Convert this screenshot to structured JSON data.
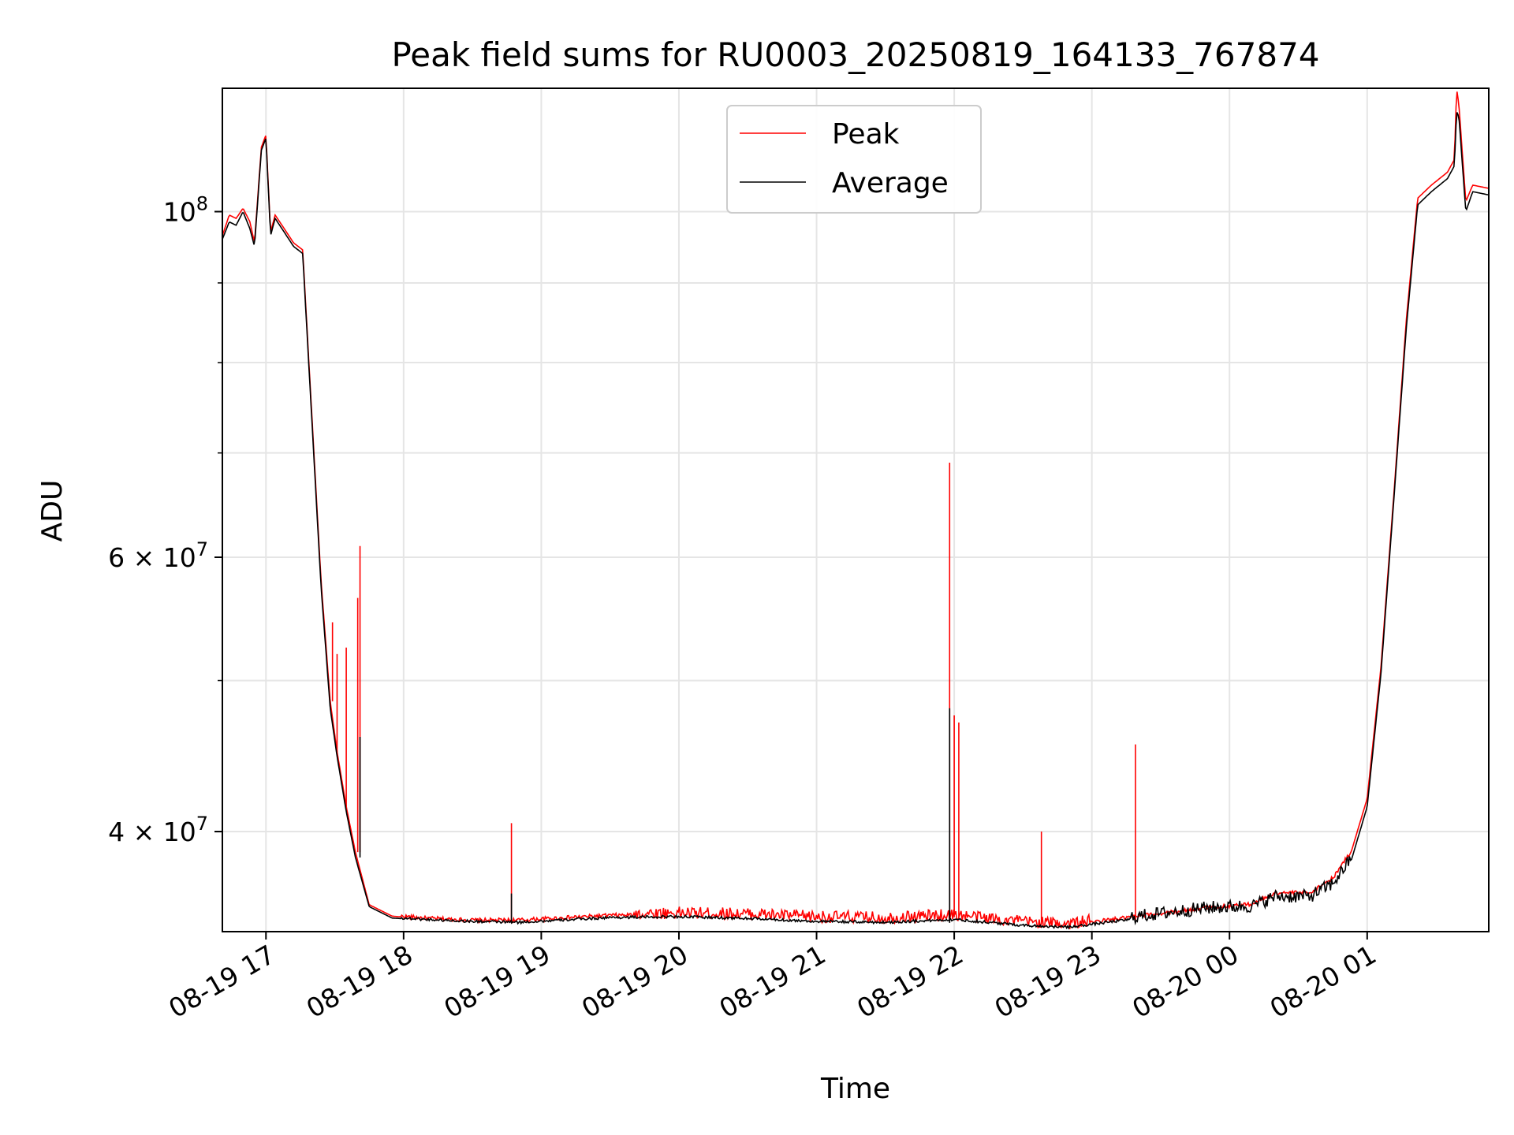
{
  "chart_data": {
    "type": "line",
    "title": "Peak field sums for RU0003_20250819_164133_767874",
    "xlabel": "Time",
    "ylabel": "ADU",
    "x_axis_type": "datetime",
    "y_scale": "log",
    "xlim": [
      "2025-08-19 16:41",
      "2025-08-20 01:53"
    ],
    "ylim": [
      34500000.0,
      120000000.0
    ],
    "grid": true,
    "legend_location": "upper center",
    "x_ticks": [
      "08-19 17",
      "08-19 18",
      "08-19 19",
      "08-19 20",
      "08-19 21",
      "08-19 22",
      "08-19 23",
      "08-20 00",
      "08-20 01"
    ],
    "y_ticks_major": [
      {
        "value": 40000000,
        "label_base": "4 × 10",
        "label_exp": "7"
      },
      {
        "value": 60000000,
        "label_base": "6 × 10",
        "label_exp": "7"
      },
      {
        "value": 100000000,
        "label_base": "10",
        "label_exp": "8"
      }
    ],
    "y_ticks_minor": [
      50000000,
      70000000,
      80000000,
      90000000
    ],
    "series": [
      {
        "name": "Peak",
        "color": "#ff0000",
        "points": [
          [
            "2025-08-19 16:41",
            96500000
          ],
          [
            "2025-08-19 16:44",
            99500000
          ],
          [
            "2025-08-19 16:47",
            99000000
          ],
          [
            "2025-08-19 16:50",
            100500000
          ],
          [
            "2025-08-19 16:53",
            98500000
          ],
          [
            "2025-08-19 16:55",
            95500000
          ],
          [
            "2025-08-19 16:58",
            110000000
          ],
          [
            "2025-08-19 17:00",
            112000000
          ],
          [
            "2025-08-19 17:02",
            97000000
          ],
          [
            "2025-08-19 17:04",
            99500000
          ],
          [
            "2025-08-19 17:08",
            97500000
          ],
          [
            "2025-08-19 17:12",
            95500000
          ],
          [
            "2025-08-19 17:16",
            94500000
          ],
          [
            "2025-08-19 17:20",
            74000000
          ],
          [
            "2025-08-19 17:24",
            58000000
          ],
          [
            "2025-08-19 17:28",
            48500000
          ],
          [
            "2025-08-19 17:31",
            45000000
          ],
          [
            "2025-08-19 17:35",
            41500000
          ],
          [
            "2025-08-19 17:39",
            38800000
          ],
          [
            "2025-08-19 17:45",
            35900000
          ],
          [
            "2025-08-19 17:55",
            35300000
          ],
          [
            "2025-08-19 18:10",
            35150000
          ],
          [
            "2025-08-19 18:30",
            35050000
          ],
          [
            "2025-08-19 18:50",
            35050000
          ],
          [
            "2025-08-19 19:30",
            35300000
          ],
          [
            "2025-08-19 20:00",
            35350000
          ],
          [
            "2025-08-19 20:30",
            35300000
          ],
          [
            "2025-08-19 21:00",
            35150000
          ],
          [
            "2025-08-19 21:30",
            35100000
          ],
          [
            "2025-08-19 22:00",
            35250000
          ],
          [
            "2025-08-19 22:30",
            34900000
          ],
          [
            "2025-08-19 22:50",
            34800000
          ],
          [
            "2025-08-19 23:10",
            35100000
          ],
          [
            "2025-08-19 23:30",
            35400000
          ],
          [
            "2025-08-19 23:50",
            35700000
          ],
          [
            "2025-08-20 00:10",
            35900000
          ],
          [
            "2025-08-20 00:20",
            36500000
          ],
          [
            "2025-08-20 00:35",
            36500000
          ],
          [
            "2025-08-20 00:45",
            37300000
          ],
          [
            "2025-08-20 00:53",
            38800000
          ],
          [
            "2025-08-20 01:00",
            42000000
          ],
          [
            "2025-08-20 01:06",
            51000000
          ],
          [
            "2025-08-20 01:12",
            67000000
          ],
          [
            "2025-08-20 01:17",
            85000000
          ],
          [
            "2025-08-20 01:22",
            102000000
          ],
          [
            "2025-08-20 01:28",
            104000000
          ],
          [
            "2025-08-20 01:35",
            106000000
          ],
          [
            "2025-08-20 01:38",
            108000000
          ],
          [
            "2025-08-20 01:39",
            120000000
          ],
          [
            "2025-08-20 01:40",
            117000000
          ],
          [
            "2025-08-20 01:43",
            101500000
          ],
          [
            "2025-08-20 01:46",
            104000000
          ],
          [
            "2025-08-20 01:53",
            103500000
          ]
        ],
        "spikes": [
          [
            "2025-08-19 17:29",
            54500000
          ],
          [
            "2025-08-19 17:31",
            52000000
          ],
          [
            "2025-08-19 17:35",
            52500000
          ],
          [
            "2025-08-19 17:40",
            56500000
          ],
          [
            "2025-08-19 17:41",
            61000000
          ],
          [
            "2025-08-19 18:47",
            40500000
          ],
          [
            "2025-08-19 21:58",
            69000000
          ],
          [
            "2025-08-19 22:00",
            47500000
          ],
          [
            "2025-08-19 22:02",
            47000000
          ],
          [
            "2025-08-19 22:38",
            40000000
          ],
          [
            "2025-08-19 23:19",
            45500000
          ]
        ]
      },
      {
        "name": "Average",
        "color": "#000000",
        "points": [
          [
            "2025-08-19 16:41",
            96000000
          ],
          [
            "2025-08-19 16:44",
            98500000
          ],
          [
            "2025-08-19 16:47",
            98000000
          ],
          [
            "2025-08-19 16:50",
            100000000
          ],
          [
            "2025-08-19 16:53",
            97500000
          ],
          [
            "2025-08-19 16:55",
            95000000
          ],
          [
            "2025-08-19 16:58",
            109500000
          ],
          [
            "2025-08-19 17:00",
            111500000
          ],
          [
            "2025-08-19 17:02",
            96500000
          ],
          [
            "2025-08-19 17:04",
            99000000
          ],
          [
            "2025-08-19 17:08",
            97000000
          ],
          [
            "2025-08-19 17:12",
            95000000
          ],
          [
            "2025-08-19 17:16",
            94000000
          ],
          [
            "2025-08-19 17:20",
            73500000
          ],
          [
            "2025-08-19 17:24",
            57500000
          ],
          [
            "2025-08-19 17:28",
            48000000
          ],
          [
            "2025-08-19 17:31",
            44700000
          ],
          [
            "2025-08-19 17:35",
            41200000
          ],
          [
            "2025-08-19 17:39",
            38500000
          ],
          [
            "2025-08-19 17:45",
            35800000
          ],
          [
            "2025-08-19 17:55",
            35200000
          ],
          [
            "2025-08-19 18:10",
            35100000
          ],
          [
            "2025-08-19 18:30",
            35000000
          ],
          [
            "2025-08-19 18:50",
            34950000
          ],
          [
            "2025-08-19 19:30",
            35200000
          ],
          [
            "2025-08-19 20:00",
            35250000
          ],
          [
            "2025-08-19 20:30",
            35150000
          ],
          [
            "2025-08-19 21:00",
            35000000
          ],
          [
            "2025-08-19 21:30",
            34950000
          ],
          [
            "2025-08-19 22:00",
            35100000
          ],
          [
            "2025-08-19 22:30",
            34800000
          ],
          [
            "2025-08-19 22:50",
            34700000
          ],
          [
            "2025-08-19 23:10",
            35000000
          ],
          [
            "2025-08-19 23:30",
            35300000
          ],
          [
            "2025-08-19 23:50",
            35600000
          ],
          [
            "2025-08-20 00:10",
            35700000
          ],
          [
            "2025-08-20 00:20",
            36200000
          ],
          [
            "2025-08-20 00:35",
            36200000
          ],
          [
            "2025-08-20 00:45",
            36900000
          ],
          [
            "2025-08-20 00:53",
            38300000
          ],
          [
            "2025-08-20 01:00",
            41500000
          ],
          [
            "2025-08-20 01:06",
            50500000
          ],
          [
            "2025-08-20 01:12",
            66500000
          ],
          [
            "2025-08-20 01:17",
            84000000
          ],
          [
            "2025-08-20 01:22",
            101000000
          ],
          [
            "2025-08-20 01:28",
            103000000
          ],
          [
            "2025-08-20 01:35",
            105000000
          ],
          [
            "2025-08-20 01:38",
            107000000
          ],
          [
            "2025-08-20 01:39",
            116000000
          ],
          [
            "2025-08-20 01:40",
            115000000
          ],
          [
            "2025-08-20 01:43",
            100000000
          ],
          [
            "2025-08-20 01:46",
            103000000
          ],
          [
            "2025-08-20 01:53",
            102500000
          ]
        ],
        "spikes": [
          [
            "2025-08-19 17:41",
            46000000
          ],
          [
            "2025-08-19 18:47",
            36500000
          ],
          [
            "2025-08-19 21:58",
            48000000
          ]
        ]
      }
    ]
  }
}
